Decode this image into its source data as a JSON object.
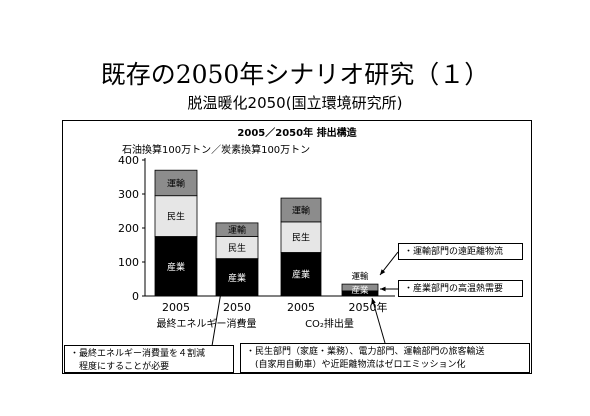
{
  "slide": {
    "title": "既存の2050年シナリオ研究（１）",
    "subtitle": "脱温暖化2050(国立環境研究所)"
  },
  "chart_data": {
    "type": "bar",
    "stacked": true,
    "title": "2005／2050年 排出構造",
    "unit_label": "石油換算100万トン／炭素換算100万トン",
    "ylim": [
      0,
      400
    ],
    "yticks": [
      "0",
      "100",
      "200",
      "300",
      "400"
    ],
    "categories": [
      "2005",
      "2050",
      "2005",
      "2050年"
    ],
    "groups": [
      {
        "label": "最終エネルギー消費量",
        "categories": [
          0,
          1
        ]
      },
      {
        "label": "CO₂排出量",
        "categories": [
          2,
          3
        ]
      }
    ],
    "series": [
      {
        "name": "産業",
        "color": "#000000",
        "text_color": "#ffffff",
        "values": [
          175,
          110,
          128,
          15
        ]
      },
      {
        "name": "民生",
        "color": "#e6e6e6",
        "text_color": "#000000",
        "values": [
          120,
          65,
          90,
          0
        ]
      },
      {
        "name": "運輸",
        "color": "#8c8c8c",
        "text_color": "#000000",
        "values": [
          75,
          40,
          70,
          20
        ]
      }
    ]
  },
  "notes": {
    "energy_line1": "・最終エネルギー消費量を４割減",
    "energy_line2": "　程度にすることが必要",
    "zero_line1": "・民生部門（家庭・業務）、電力部門、運輸部門の旅客輸送",
    "zero_line2": "　(自家用自動車）や近距離物流はゼロエミッション化",
    "transport": "・運輸部門の遠距離物流",
    "industry": "・産業部門の高温熱需要"
  }
}
